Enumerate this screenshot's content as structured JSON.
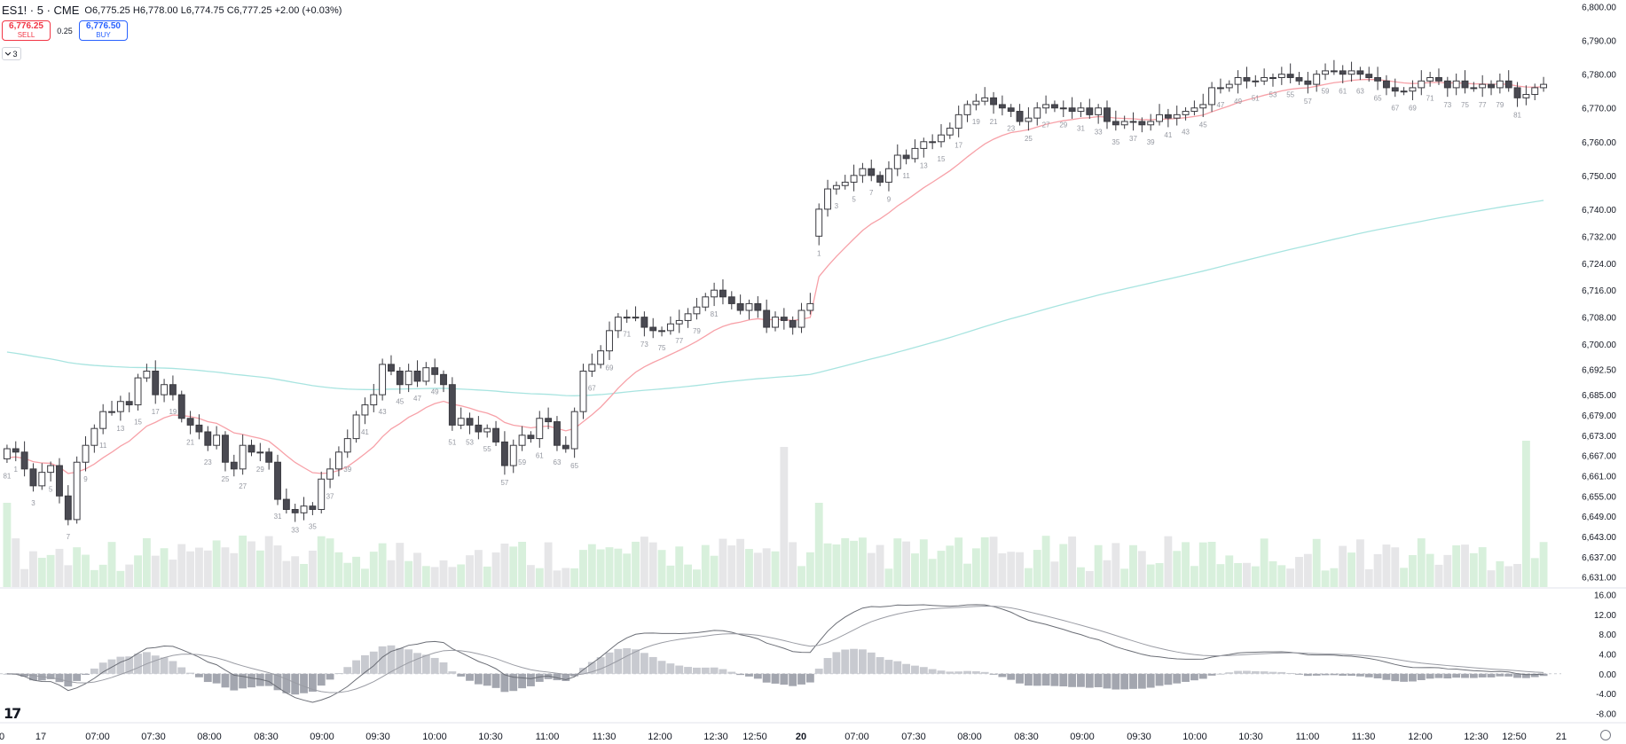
{
  "header": {
    "symbol": "ES1! · 5 · CME",
    "open_label": "O",
    "open": "6,775.25",
    "high_label": "H",
    "high": "6,778.00",
    "low_label": "L",
    "low": "6,774.75",
    "close_label": "C",
    "close": "6,777.25",
    "change": "+2.00 (+0.03%)"
  },
  "trade": {
    "sell_price": "6,776.25",
    "sell_label": "SELL",
    "spread": "0.25",
    "buy_price": "6,776.50",
    "buy_label": "BUY"
  },
  "indicators_toggle": {
    "label": "3",
    "icon": "chevron-down-icon"
  },
  "colors": {
    "up_candle": "#ffffff",
    "down_candle": "#4a4a52",
    "ema_fast": "#f7a1a8",
    "ema_slow": "#a8e4e0",
    "vwap": "#5b7cf0",
    "vol_up": "#d8f0dc",
    "vol_down": "#e6e6e8",
    "macd_hist": "#b3b5bd"
  },
  "chart_data": {
    "type": "candlestick",
    "price_axis": {
      "labels": [
        "6,800.00",
        "6,790.00",
        "6,780.00",
        "6,770.00",
        "6,760.00",
        "6,750.00",
        "6,740.00",
        "6,732.00",
        "6,724.00",
        "6,716.00",
        "6,708.00",
        "6,700.00",
        "6,692.50",
        "6,685.00",
        "6,679.00",
        "6,673.00",
        "6,667.00",
        "6,661.00",
        "6,655.00",
        "6,649.00",
        "6,643.00",
        "6,637.00",
        "6,631.00"
      ],
      "range": [
        6628,
        6802
      ]
    },
    "macd_axis": {
      "labels": [
        "16.00",
        "12.00",
        "8.00",
        "4.00",
        "0.00",
        "-4.00",
        "-8.00"
      ],
      "range": [
        -9,
        17
      ]
    },
    "time_axis": {
      "labels": [
        "0",
        "17",
        "07:00",
        "07:30",
        "08:00",
        "08:30",
        "09:00",
        "09:30",
        "10:00",
        "10:30",
        "11:00",
        "11:30",
        "12:00",
        "12:30",
        "12:50",
        "20",
        "07:00",
        "07:30",
        "08:00",
        "08:30",
        "09:00",
        "09:30",
        "10:00",
        "10:30",
        "11:00",
        "11:30",
        "12:00",
        "12:30",
        "12:50",
        "21"
      ],
      "bold": [
        "20"
      ]
    },
    "sessions": [
      {
        "closes": [
          6669,
          6668,
          6663,
          6658,
          6662,
          6664,
          6655,
          6648,
          6665,
          6670,
          6675,
          6680,
          6680,
          6683,
          6682,
          6690,
          6692,
          6685,
          6688,
          6685,
          6678,
          6676,
          6674,
          6670,
          6673,
          6665,
          6663,
          6670,
          6668,
          6668,
          6665,
          6654,
          6651,
          6650,
          6652,
          6651,
          6660,
          6663,
          6668,
          6672,
          6679,
          6682,
          6685,
          6694,
          6692,
          6688,
          6692,
          6689,
          6693,
          6691,
          6688,
          6676,
          6678,
          6676,
          6674,
          6675,
          6671,
          6664,
          6670,
          6673,
          6672,
          6678,
          6677,
          6670,
          6669,
          6680,
          6692,
          6694,
          6698,
          6704,
          6708,
          6708,
          6708,
          6705,
          6704,
          6704,
          6706,
          6707,
          6709,
          6711,
          6714,
          6716,
          6714,
          6712,
          6710,
          6712,
          6710,
          6705,
          6708,
          6707,
          6705,
          6710,
          6712
        ],
        "seq_labels": [
          "81",
          "1",
          "3",
          "5",
          "7",
          "9",
          "11",
          "13",
          "15",
          "17",
          "19",
          "21",
          "23",
          "25",
          "27",
          "29",
          "31",
          "33",
          "35",
          "37",
          "39",
          "41",
          "43",
          "45",
          "47",
          "49",
          "51",
          "53",
          "55",
          "57",
          "59",
          "61",
          "63",
          "65",
          "67",
          "69",
          "71",
          "73",
          "75",
          "77",
          "79",
          "81"
        ]
      },
      {
        "closes": [
          6740,
          6746,
          6747,
          6748,
          6750,
          6752,
          6750,
          6748,
          6752,
          6756,
          6755,
          6758,
          6760,
          6760,
          6762,
          6764,
          6768,
          6771,
          6772,
          6773,
          6771,
          6770,
          6769,
          6766,
          6767,
          6770,
          6771,
          6770,
          6770,
          6769,
          6770,
          6768,
          6770,
          6766,
          6765,
          6766,
          6766,
          6765,
          6766,
          6768,
          6767,
          6768,
          6769,
          6770,
          6771,
          6776,
          6776,
          6777,
          6779,
          6778,
          6778,
          6779,
          6779,
          6780,
          6779,
          6778,
          6777,
          6780,
          6781,
          6781,
          6780,
          6781,
          6780,
          6779,
          6778,
          6776,
          6775,
          6775,
          6776,
          6778,
          6779,
          6778,
          6776,
          6778,
          6776,
          6776,
          6777,
          6776,
          6778,
          6776,
          6773,
          6774,
          6776,
          6777
        ],
        "seq_labels": [
          "1",
          "3",
          "5",
          "7",
          "9",
          "11",
          "13",
          "15",
          "17",
          "19",
          "21",
          "23",
          "25",
          "27",
          "29",
          "31",
          "33",
          "35",
          "37",
          "39",
          "41",
          "43",
          "45",
          "47",
          "49",
          "51",
          "53",
          "55",
          "57",
          "59",
          "61",
          "63",
          "65",
          "67",
          "69",
          "71",
          "73",
          "75",
          "77",
          "79",
          "81"
        ]
      }
    ],
    "series": [
      {
        "name": "EMA fast"
      },
      {
        "name": "EMA slow"
      },
      {
        "name": "Volume"
      },
      {
        "name": "MACD"
      }
    ],
    "grid": false
  }
}
